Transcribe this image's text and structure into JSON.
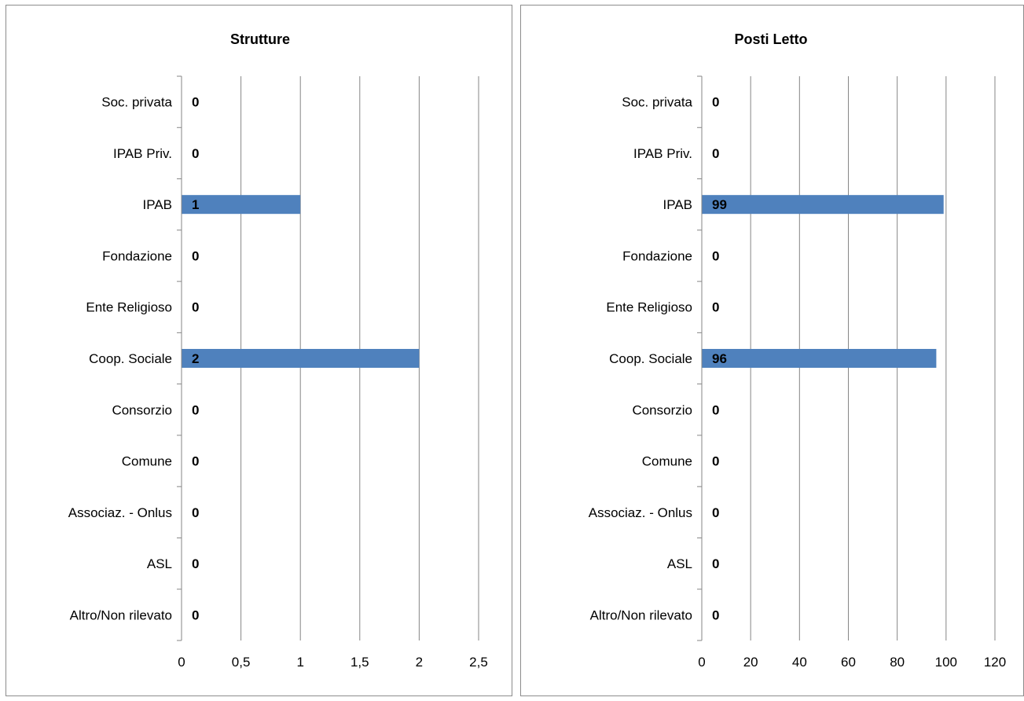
{
  "chart_data": [
    {
      "type": "bar",
      "orientation": "horizontal",
      "title": "Strutture",
      "categories": [
        "Soc. privata",
        "IPAB Priv.",
        "IPAB",
        "Fondazione",
        "Ente Religioso",
        "Coop. Sociale",
        "Consorzio",
        "Comune",
        "Associaz. - Onlus",
        "ASL",
        "Altro/Non rilevato"
      ],
      "values": [
        0,
        0,
        1,
        0,
        0,
        2,
        0,
        0,
        0,
        0,
        0
      ],
      "data_labels": [
        "0",
        "0",
        "1",
        "0",
        "0",
        "2",
        "0",
        "0",
        "0",
        "0",
        "0"
      ],
      "xlim": [
        0,
        2.5
      ],
      "x_ticks": [
        0,
        0.5,
        1,
        1.5,
        2,
        2.5
      ],
      "x_tick_labels": [
        "0",
        "0,5",
        "1",
        "1,5",
        "2",
        "2,5"
      ],
      "grid": "vertical",
      "legend": "none",
      "bar_color": "#4f81bd"
    },
    {
      "type": "bar",
      "orientation": "horizontal",
      "title": "Posti Letto",
      "categories": [
        "Soc. privata",
        "IPAB Priv.",
        "IPAB",
        "Fondazione",
        "Ente Religioso",
        "Coop. Sociale",
        "Consorzio",
        "Comune",
        "Associaz. - Onlus",
        "ASL",
        "Altro/Non rilevato"
      ],
      "values": [
        0,
        0,
        99,
        0,
        0,
        96,
        0,
        0,
        0,
        0,
        0
      ],
      "data_labels": [
        "0",
        "0",
        "99",
        "0",
        "0",
        "96",
        "0",
        "0",
        "0",
        "0",
        "0"
      ],
      "xlim": [
        0,
        120
      ],
      "x_ticks": [
        0,
        20,
        40,
        60,
        80,
        100,
        120
      ],
      "x_tick_labels": [
        "0",
        "20",
        "40",
        "60",
        "80",
        "100",
        "120"
      ],
      "grid": "vertical",
      "legend": "none",
      "bar_color": "#4f81bd"
    }
  ]
}
